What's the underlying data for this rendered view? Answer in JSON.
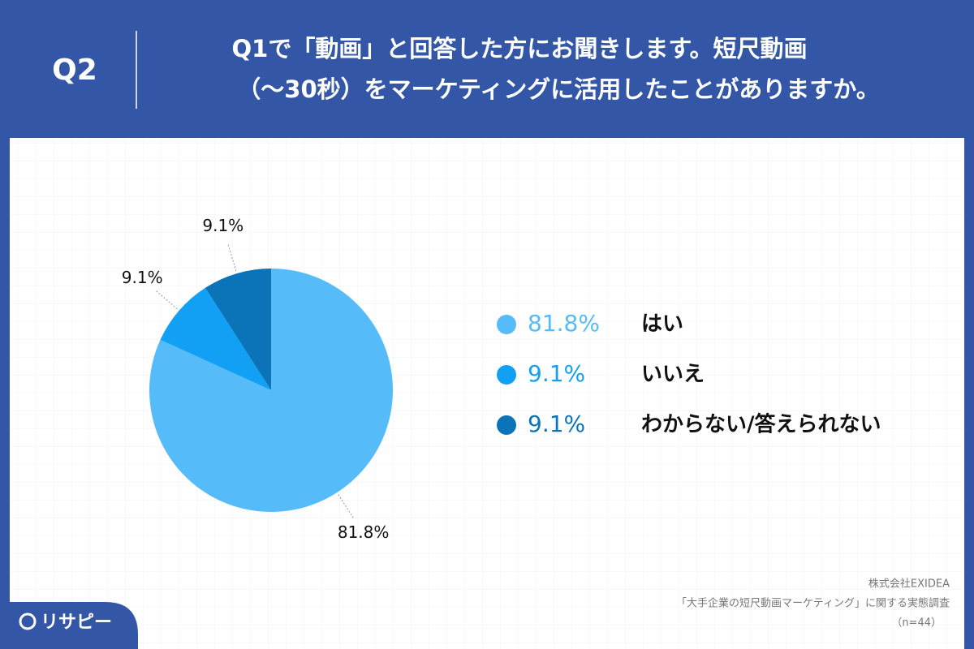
{
  "header": {
    "badge": "Q2",
    "title": [
      "Q1で「動画」と回答した方にお聞きします。短尺動画",
      "（〜30秒）をマーケティングに活用したことがありますか。"
    ]
  },
  "chart_data": {
    "type": "pie",
    "categories": [
      "はい",
      "いいえ",
      "わからない/答えられない"
    ],
    "values": [
      81.8,
      9.1,
      9.1
    ],
    "value_labels": [
      "81.8%",
      "9.1%",
      "9.1%"
    ],
    "colors": [
      "#55bcf9",
      "#12a0f4",
      "#0b73b8"
    ]
  },
  "source": [
    "株式会社EXIDEA",
    "「大手企業の短尺動画マーケティング」に関する実態調査",
    "（n=44）"
  ],
  "logo": "リサピー"
}
